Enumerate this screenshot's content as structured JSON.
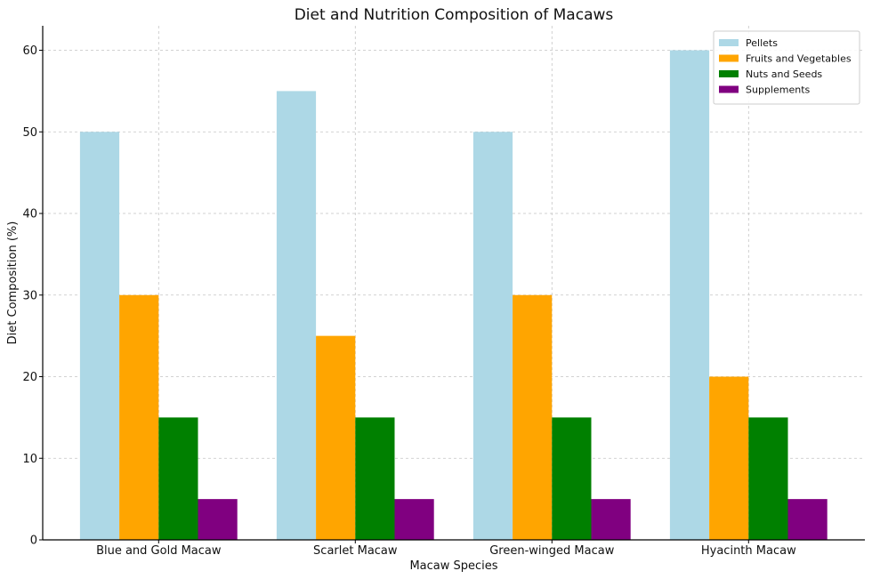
{
  "chart_data": {
    "type": "bar",
    "title": "Diet and Nutrition Composition of Macaws",
    "xlabel": "Macaw Species",
    "ylabel": "Diet Composition (%)",
    "ylim": [
      0,
      63
    ],
    "yticks": [
      0,
      10,
      20,
      30,
      40,
      50,
      60
    ],
    "grid": true,
    "legend_position": "top-right",
    "categories": [
      "Blue and Gold Macaw",
      "Scarlet Macaw",
      "Green-winged Macaw",
      "Hyacinth Macaw"
    ],
    "series": [
      {
        "name": "Pellets",
        "color": "#add8e6",
        "values": [
          50,
          55,
          50,
          60
        ]
      },
      {
        "name": "Fruits and Vegetables",
        "color": "#ffa500",
        "values": [
          30,
          25,
          30,
          20
        ]
      },
      {
        "name": "Nuts and Seeds",
        "color": "#008000",
        "values": [
          15,
          15,
          15,
          15
        ]
      },
      {
        "name": "Supplements",
        "color": "#800080",
        "values": [
          5,
          5,
          5,
          5
        ]
      }
    ]
  }
}
